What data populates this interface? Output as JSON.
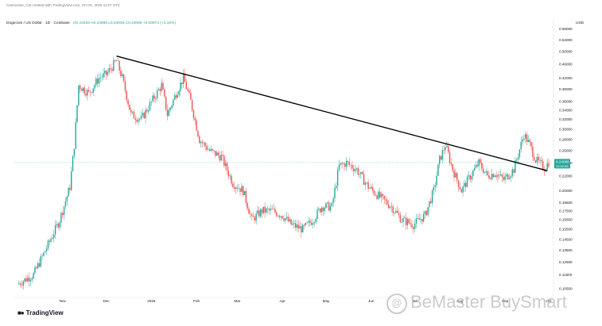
{
  "header_text": "Cantonese_Cat created with TradingView.com, Oct 01, 2025 11:07 UTC",
  "symbol_line": "Dogecoin / US Dollar · 1D · Coinbase",
  "ohlc_line": "O0.23293 H0.24988 L0.23038 C0.24069 +0.00974 (+4.18%)",
  "currency": "USD",
  "branding": "TradingView",
  "watermark": "BeMaster BuySmart",
  "price_badge": "0.24069",
  "price_badge_time": "12:52:55",
  "colors": {
    "up": "#26a69a",
    "down": "#ef5350",
    "trendline": "#000000",
    "badge": "#26a69a"
  },
  "chart_data": {
    "type": "candlestick",
    "title": "",
    "xlabel": "",
    "ylabel": "",
    "ylim": [
      0.1,
      0.6
    ],
    "y_ticks": [
      0.58,
      0.54,
      0.5,
      0.46,
      0.42,
      0.39,
      0.36,
      0.34,
      0.32,
      0.3,
      0.28,
      0.26,
      0.24,
      0.22,
      0.2,
      0.185,
      0.175,
      0.165,
      0.155,
      0.145,
      0.135,
      0.125,
      0.115,
      0.105
    ],
    "y_tick_labels": [
      "0.58000",
      "0.54000",
      "0.50000",
      "0.46000",
      "0.42000",
      "0.39000",
      "0.36000",
      "0.34000",
      "0.32000",
      "0.30000",
      "0.28000",
      "0.26000",
      "0.24000",
      "0.22000",
      "0.20000",
      "0.18500",
      "0.17500",
      "0.16500",
      "0.15500",
      "0.14500",
      "0.13500",
      "0.12500",
      "0.11500",
      "0.10500"
    ],
    "x_range": [
      "2024-10-01",
      "2025-10-01"
    ],
    "x_ticks": [
      {
        "label": "Nov",
        "date": "2024-11-01"
      },
      {
        "label": "Dec",
        "date": "2024-12-01"
      },
      {
        "label": "2025",
        "date": "2025-01-01"
      },
      {
        "label": "Feb",
        "date": "2025-02-01"
      },
      {
        "label": "Mar",
        "date": "2025-03-01"
      },
      {
        "label": "Apr",
        "date": "2025-04-01"
      },
      {
        "label": "May",
        "date": "2025-05-01"
      },
      {
        "label": "Jun",
        "date": "2025-06-01"
      },
      {
        "label": "Jul",
        "date": "2025-07-01"
      },
      {
        "label": "Aug",
        "date": "2025-08-01"
      },
      {
        "label": "Sep",
        "date": "2025-09-01"
      },
      {
        "label": "Oct",
        "date": "2025-10-01"
      }
    ],
    "price_path": [
      [
        "2024-10-01",
        0.108
      ],
      [
        "2024-10-12",
        0.115
      ],
      [
        "2024-10-22",
        0.14
      ],
      [
        "2024-10-30",
        0.165
      ],
      [
        "2024-11-06",
        0.205
      ],
      [
        "2024-11-09",
        0.27
      ],
      [
        "2024-11-12",
        0.4
      ],
      [
        "2024-11-19",
        0.38
      ],
      [
        "2024-11-26",
        0.42
      ],
      [
        "2024-12-01",
        0.43
      ],
      [
        "2024-12-08",
        0.47
      ],
      [
        "2024-12-12",
        0.42
      ],
      [
        "2024-12-18",
        0.33
      ],
      [
        "2024-12-25",
        0.32
      ],
      [
        "2025-01-03",
        0.37
      ],
      [
        "2025-01-08",
        0.4
      ],
      [
        "2025-01-12",
        0.33
      ],
      [
        "2025-01-18",
        0.38
      ],
      [
        "2025-01-23",
        0.42
      ],
      [
        "2025-01-28",
        0.36
      ],
      [
        "2025-02-03",
        0.28
      ],
      [
        "2025-02-10",
        0.26
      ],
      [
        "2025-02-18",
        0.25
      ],
      [
        "2025-02-26",
        0.21
      ],
      [
        "2025-03-05",
        0.2
      ],
      [
        "2025-03-11",
        0.165
      ],
      [
        "2025-03-18",
        0.175
      ],
      [
        "2025-03-25",
        0.175
      ],
      [
        "2025-04-01",
        0.17
      ],
      [
        "2025-04-07",
        0.16
      ],
      [
        "2025-04-15",
        0.155
      ],
      [
        "2025-04-22",
        0.165
      ],
      [
        "2025-04-28",
        0.18
      ],
      [
        "2025-05-05",
        0.18
      ],
      [
        "2025-05-10",
        0.235
      ],
      [
        "2025-05-15",
        0.24
      ],
      [
        "2025-05-22",
        0.23
      ],
      [
        "2025-05-30",
        0.205
      ],
      [
        "2025-06-08",
        0.19
      ],
      [
        "2025-06-15",
        0.18
      ],
      [
        "2025-06-22",
        0.165
      ],
      [
        "2025-06-30",
        0.16
      ],
      [
        "2025-07-08",
        0.17
      ],
      [
        "2025-07-14",
        0.2
      ],
      [
        "2025-07-18",
        0.245
      ],
      [
        "2025-07-22",
        0.27
      ],
      [
        "2025-07-27",
        0.23
      ],
      [
        "2025-08-02",
        0.2
      ],
      [
        "2025-08-08",
        0.22
      ],
      [
        "2025-08-14",
        0.24
      ],
      [
        "2025-08-20",
        0.22
      ],
      [
        "2025-08-25",
        0.225
      ],
      [
        "2025-08-31",
        0.215
      ],
      [
        "2025-09-07",
        0.23
      ],
      [
        "2025-09-14",
        0.29
      ],
      [
        "2025-09-18",
        0.27
      ],
      [
        "2025-09-22",
        0.245
      ],
      [
        "2025-09-28",
        0.232
      ],
      [
        "2025-10-01",
        0.241
      ]
    ],
    "trendline": [
      [
        "2024-12-08",
        0.485
      ],
      [
        "2025-09-30",
        0.228
      ]
    ],
    "last_price": 0.24069
  }
}
